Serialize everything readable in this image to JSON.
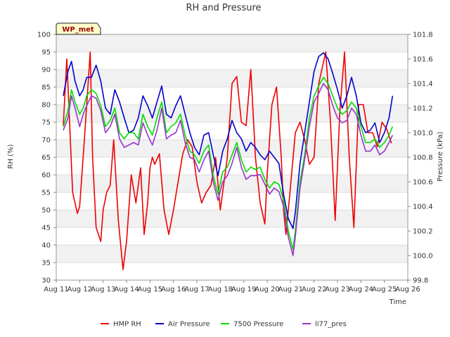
{
  "chart_data": {
    "type": "line",
    "title": "RH and Pressure",
    "station_badge": "WP_met",
    "xlabel": "Time",
    "ylabel_left": "RH (%)",
    "ylabel_right": "Pressure (kPa)",
    "x_ticks": [
      "Aug 11",
      "Aug 12",
      "Aug 13",
      "Aug 14",
      "Aug 15",
      "Aug 16",
      "Aug 17",
      "Aug 18",
      "Aug 19",
      "Aug 20",
      "Aug 21",
      "Aug 22",
      "Aug 23",
      "Aug 24",
      "Aug 25",
      "Aug 26"
    ],
    "xlim": [
      11,
      26
    ],
    "ylim_left": [
      30,
      100
    ],
    "ylim_right": [
      99.8,
      101.8
    ],
    "y_ticks_left": [
      30,
      35,
      40,
      45,
      50,
      55,
      60,
      65,
      70,
      75,
      80,
      85,
      90,
      95,
      100
    ],
    "y_ticks_right": [
      99.8,
      100.0,
      100.2,
      100.4,
      100.6,
      100.8,
      101.0,
      101.2,
      101.4,
      101.6,
      101.8
    ],
    "grid": true,
    "legend_position": "bottom",
    "series": [
      {
        "name": "HMP RH",
        "axis": "left",
        "color": "#ee0000",
        "x": [
          11.3,
          11.45,
          11.55,
          11.7,
          11.9,
          12.0,
          12.2,
          12.45,
          12.55,
          12.7,
          12.9,
          13.0,
          13.15,
          13.3,
          13.45,
          13.65,
          13.85,
          14.0,
          14.2,
          14.4,
          14.6,
          14.75,
          14.9,
          15.0,
          15.1,
          15.2,
          15.4,
          15.6,
          15.8,
          16.0,
          16.2,
          16.4,
          16.6,
          16.8,
          17.0,
          17.2,
          17.4,
          17.6,
          17.8,
          18.0,
          18.3,
          18.5,
          18.7,
          18.9,
          19.1,
          19.3,
          19.5,
          19.7,
          19.9,
          20.0,
          20.2,
          20.4,
          20.6,
          20.7,
          20.8,
          21.0,
          21.2,
          21.4,
          21.6,
          21.8,
          22.0,
          22.2,
          22.5,
          22.7,
          22.9,
          23.1,
          23.3,
          23.5,
          23.7,
          23.9,
          24.1,
          24.3,
          24.5,
          24.7,
          24.9,
          25.1,
          25.3
        ],
        "values": [
          74,
          93,
          78,
          55,
          49,
          51,
          70,
          95,
          65,
          45,
          41,
          50,
          55,
          57,
          70,
          47,
          33,
          41,
          60,
          52,
          62,
          43,
          52,
          62,
          65,
          63,
          66,
          50,
          43,
          50,
          58,
          66,
          70,
          68,
          58,
          52,
          55,
          57,
          65,
          50,
          65,
          86,
          88,
          75,
          74,
          90,
          65,
          52,
          46,
          60,
          80,
          85,
          65,
          50,
          43,
          57,
          72,
          75,
          70,
          63,
          65,
          86,
          95,
          75,
          47,
          78,
          95,
          65,
          45,
          80,
          80,
          72,
          72,
          68,
          75,
          73,
          69
        ]
      },
      {
        "name": "Air Pressure",
        "axis": "right",
        "color": "#0000cc",
        "x": [
          11.3,
          11.5,
          11.65,
          11.8,
          12.0,
          12.15,
          12.3,
          12.5,
          12.7,
          12.9,
          13.1,
          13.3,
          13.5,
          13.7,
          13.9,
          14.1,
          14.3,
          14.5,
          14.7,
          14.9,
          15.1,
          15.3,
          15.5,
          15.7,
          15.9,
          16.1,
          16.3,
          16.5,
          16.7,
          16.9,
          17.1,
          17.3,
          17.5,
          17.7,
          17.9,
          18.1,
          18.3,
          18.5,
          18.7,
          18.9,
          19.1,
          19.3,
          19.5,
          19.7,
          19.9,
          20.1,
          20.3,
          20.5,
          20.7,
          20.9,
          21.1,
          21.2,
          21.4,
          21.6,
          21.8,
          22.0,
          22.2,
          22.4,
          22.6,
          22.8,
          23.0,
          23.2,
          23.4,
          23.6,
          23.8,
          24.0,
          24.2,
          24.4,
          24.6,
          24.8,
          25.0,
          25.2,
          25.35
        ],
        "values": [
          101.3,
          101.5,
          101.58,
          101.42,
          101.3,
          101.35,
          101.45,
          101.45,
          101.55,
          101.42,
          101.2,
          101.15,
          101.35,
          101.25,
          101.12,
          101.0,
          101.02,
          101.12,
          101.3,
          101.22,
          101.12,
          101.25,
          101.38,
          101.15,
          101.12,
          101.22,
          101.3,
          101.15,
          101.0,
          100.88,
          100.82,
          100.98,
          101.0,
          100.82,
          100.65,
          100.85,
          100.95,
          101.1,
          101.0,
          100.95,
          100.85,
          100.92,
          100.88,
          100.82,
          100.78,
          100.85,
          100.8,
          100.75,
          100.5,
          100.3,
          100.22,
          100.35,
          100.75,
          101.0,
          101.25,
          101.5,
          101.62,
          101.65,
          101.6,
          101.48,
          101.35,
          101.2,
          101.3,
          101.45,
          101.3,
          101.08,
          101.0,
          101.02,
          101.08,
          100.92,
          101.0,
          101.12,
          101.3
        ]
      },
      {
        "name": "7500 Pressure",
        "axis": "right",
        "color": "#00dd00",
        "x": [
          11.3,
          11.5,
          11.65,
          11.8,
          12.0,
          12.15,
          12.3,
          12.5,
          12.7,
          12.9,
          13.1,
          13.3,
          13.5,
          13.7,
          13.9,
          14.1,
          14.3,
          14.5,
          14.7,
          14.9,
          15.1,
          15.3,
          15.5,
          15.7,
          15.9,
          16.1,
          16.3,
          16.5,
          16.7,
          16.9,
          17.1,
          17.3,
          17.5,
          17.7,
          17.9,
          18.1,
          18.3,
          18.5,
          18.7,
          18.9,
          19.1,
          19.3,
          19.5,
          19.7,
          19.9,
          20.1,
          20.3,
          20.5,
          20.7,
          20.9,
          21.1,
          21.2,
          21.4,
          21.6,
          21.8,
          22.0,
          22.2,
          22.4,
          22.6,
          22.8,
          23.0,
          23.2,
          23.4,
          23.6,
          23.8,
          24.0,
          24.2,
          24.4,
          24.6,
          24.8,
          25.0,
          25.2,
          25.35
        ],
        "values": [
          101.05,
          101.18,
          101.35,
          101.25,
          101.15,
          101.2,
          101.3,
          101.35,
          101.32,
          101.22,
          101.05,
          101.1,
          101.2,
          101.0,
          100.95,
          101.0,
          101.0,
          100.95,
          101.15,
          101.05,
          100.98,
          101.12,
          101.25,
          101.0,
          101.05,
          101.08,
          101.15,
          100.98,
          100.85,
          100.82,
          100.75,
          100.85,
          100.9,
          100.65,
          100.5,
          100.68,
          100.72,
          100.82,
          100.92,
          100.78,
          100.68,
          100.72,
          100.7,
          100.72,
          100.62,
          100.55,
          100.6,
          100.58,
          100.45,
          100.2,
          100.05,
          100.2,
          100.6,
          100.82,
          101.12,
          101.3,
          101.38,
          101.45,
          101.4,
          101.3,
          101.2,
          101.15,
          101.18,
          101.25,
          101.2,
          101.05,
          100.92,
          100.92,
          100.95,
          100.88,
          100.92,
          100.98,
          101.05
        ]
      },
      {
        "name": "li77_pres",
        "axis": "right",
        "color": "#9933cc",
        "x": [
          11.3,
          11.5,
          11.65,
          11.8,
          12.0,
          12.15,
          12.3,
          12.5,
          12.7,
          12.9,
          13.1,
          13.3,
          13.5,
          13.7,
          13.9,
          14.1,
          14.3,
          14.5,
          14.7,
          14.9,
          15.1,
          15.3,
          15.5,
          15.7,
          15.9,
          16.1,
          16.3,
          16.5,
          16.7,
          16.9,
          17.1,
          17.3,
          17.5,
          17.7,
          17.9,
          18.1,
          18.3,
          18.5,
          18.7,
          18.9,
          19.1,
          19.3,
          19.5,
          19.7,
          19.9,
          20.1,
          20.3,
          20.5,
          20.7,
          20.9,
          21.1,
          21.2,
          21.4,
          21.6,
          21.8,
          22.0,
          22.2,
          22.4,
          22.6,
          22.8,
          23.0,
          23.2,
          23.4,
          23.6,
          23.8,
          24.0,
          24.2,
          24.4,
          24.6,
          24.8,
          25.0,
          25.2,
          25.35
        ],
        "values": [
          101.02,
          101.12,
          101.3,
          101.2,
          101.05,
          101.15,
          101.22,
          101.3,
          101.28,
          101.18,
          101.0,
          101.05,
          101.15,
          100.95,
          100.88,
          100.9,
          100.92,
          100.9,
          101.08,
          100.98,
          100.9,
          101.02,
          101.2,
          100.95,
          100.98,
          101.0,
          101.1,
          100.92,
          100.8,
          100.78,
          100.68,
          100.78,
          100.85,
          100.6,
          100.45,
          100.6,
          100.65,
          100.75,
          100.88,
          100.72,
          100.62,
          100.65,
          100.65,
          100.66,
          100.58,
          100.5,
          100.55,
          100.52,
          100.4,
          100.15,
          100.0,
          100.15,
          100.55,
          100.78,
          101.05,
          101.25,
          101.32,
          101.4,
          101.35,
          101.22,
          101.12,
          101.08,
          101.1,
          101.2,
          101.15,
          100.98,
          100.85,
          100.85,
          100.9,
          100.82,
          100.85,
          100.92,
          100.98
        ]
      }
    ]
  }
}
